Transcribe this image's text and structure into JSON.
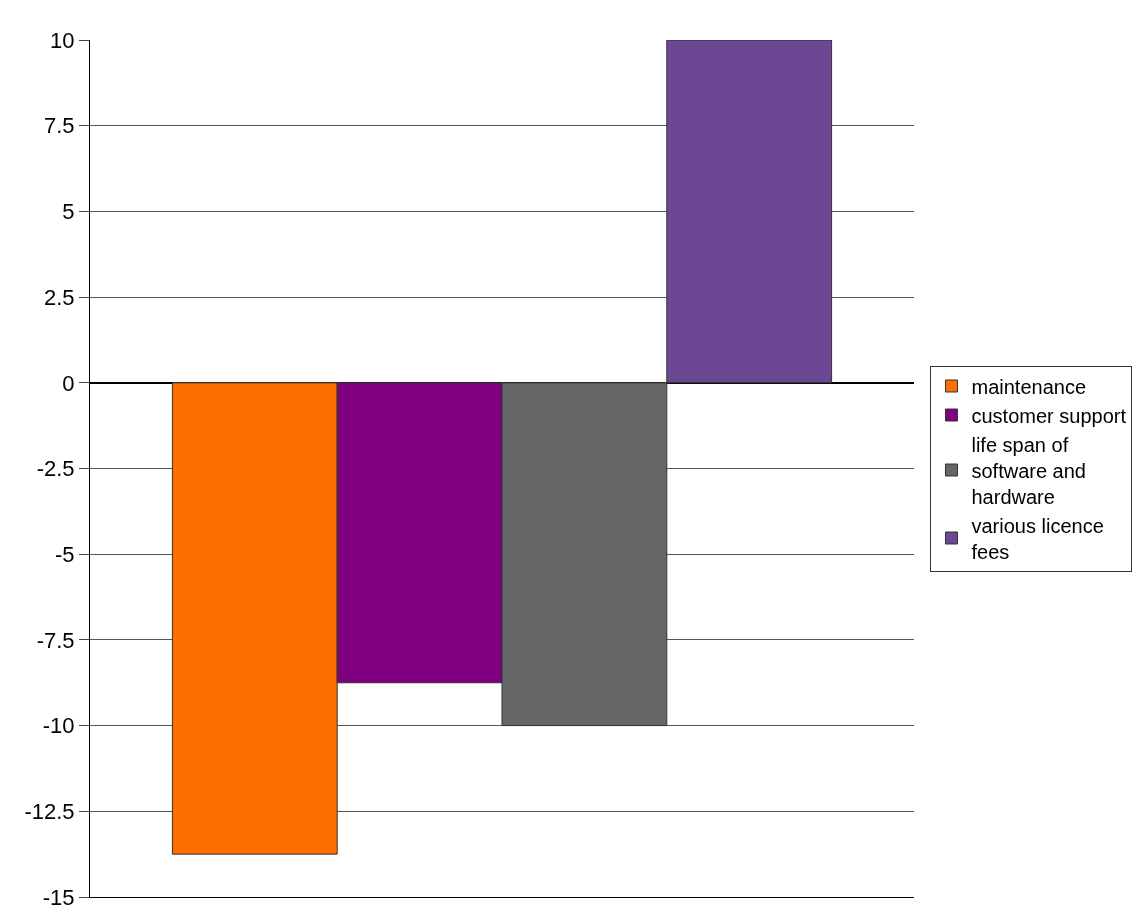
{
  "chart_data": {
    "type": "bar",
    "categories": [
      null
    ],
    "series": [
      {
        "name": "maintenance",
        "color": "#ff6f00",
        "values": [
          -13.75
        ]
      },
      {
        "name": "customer support",
        "color": "#800080",
        "values": [
          -8.75
        ]
      },
      {
        "name": "life span of\nsoftware and\nhardware",
        "color": "#666666",
        "values": [
          -10
        ]
      },
      {
        "name": "various licence\nfees",
        "color": "#6b4794",
        "values": [
          10
        ]
      }
    ],
    "ylim": [
      -15,
      10
    ],
    "yticks": [
      -15,
      -12.5,
      -10,
      -7.5,
      -5,
      -2.5,
      0,
      2.5,
      5,
      7.5,
      10
    ],
    "grid": "y",
    "legend": "right"
  }
}
